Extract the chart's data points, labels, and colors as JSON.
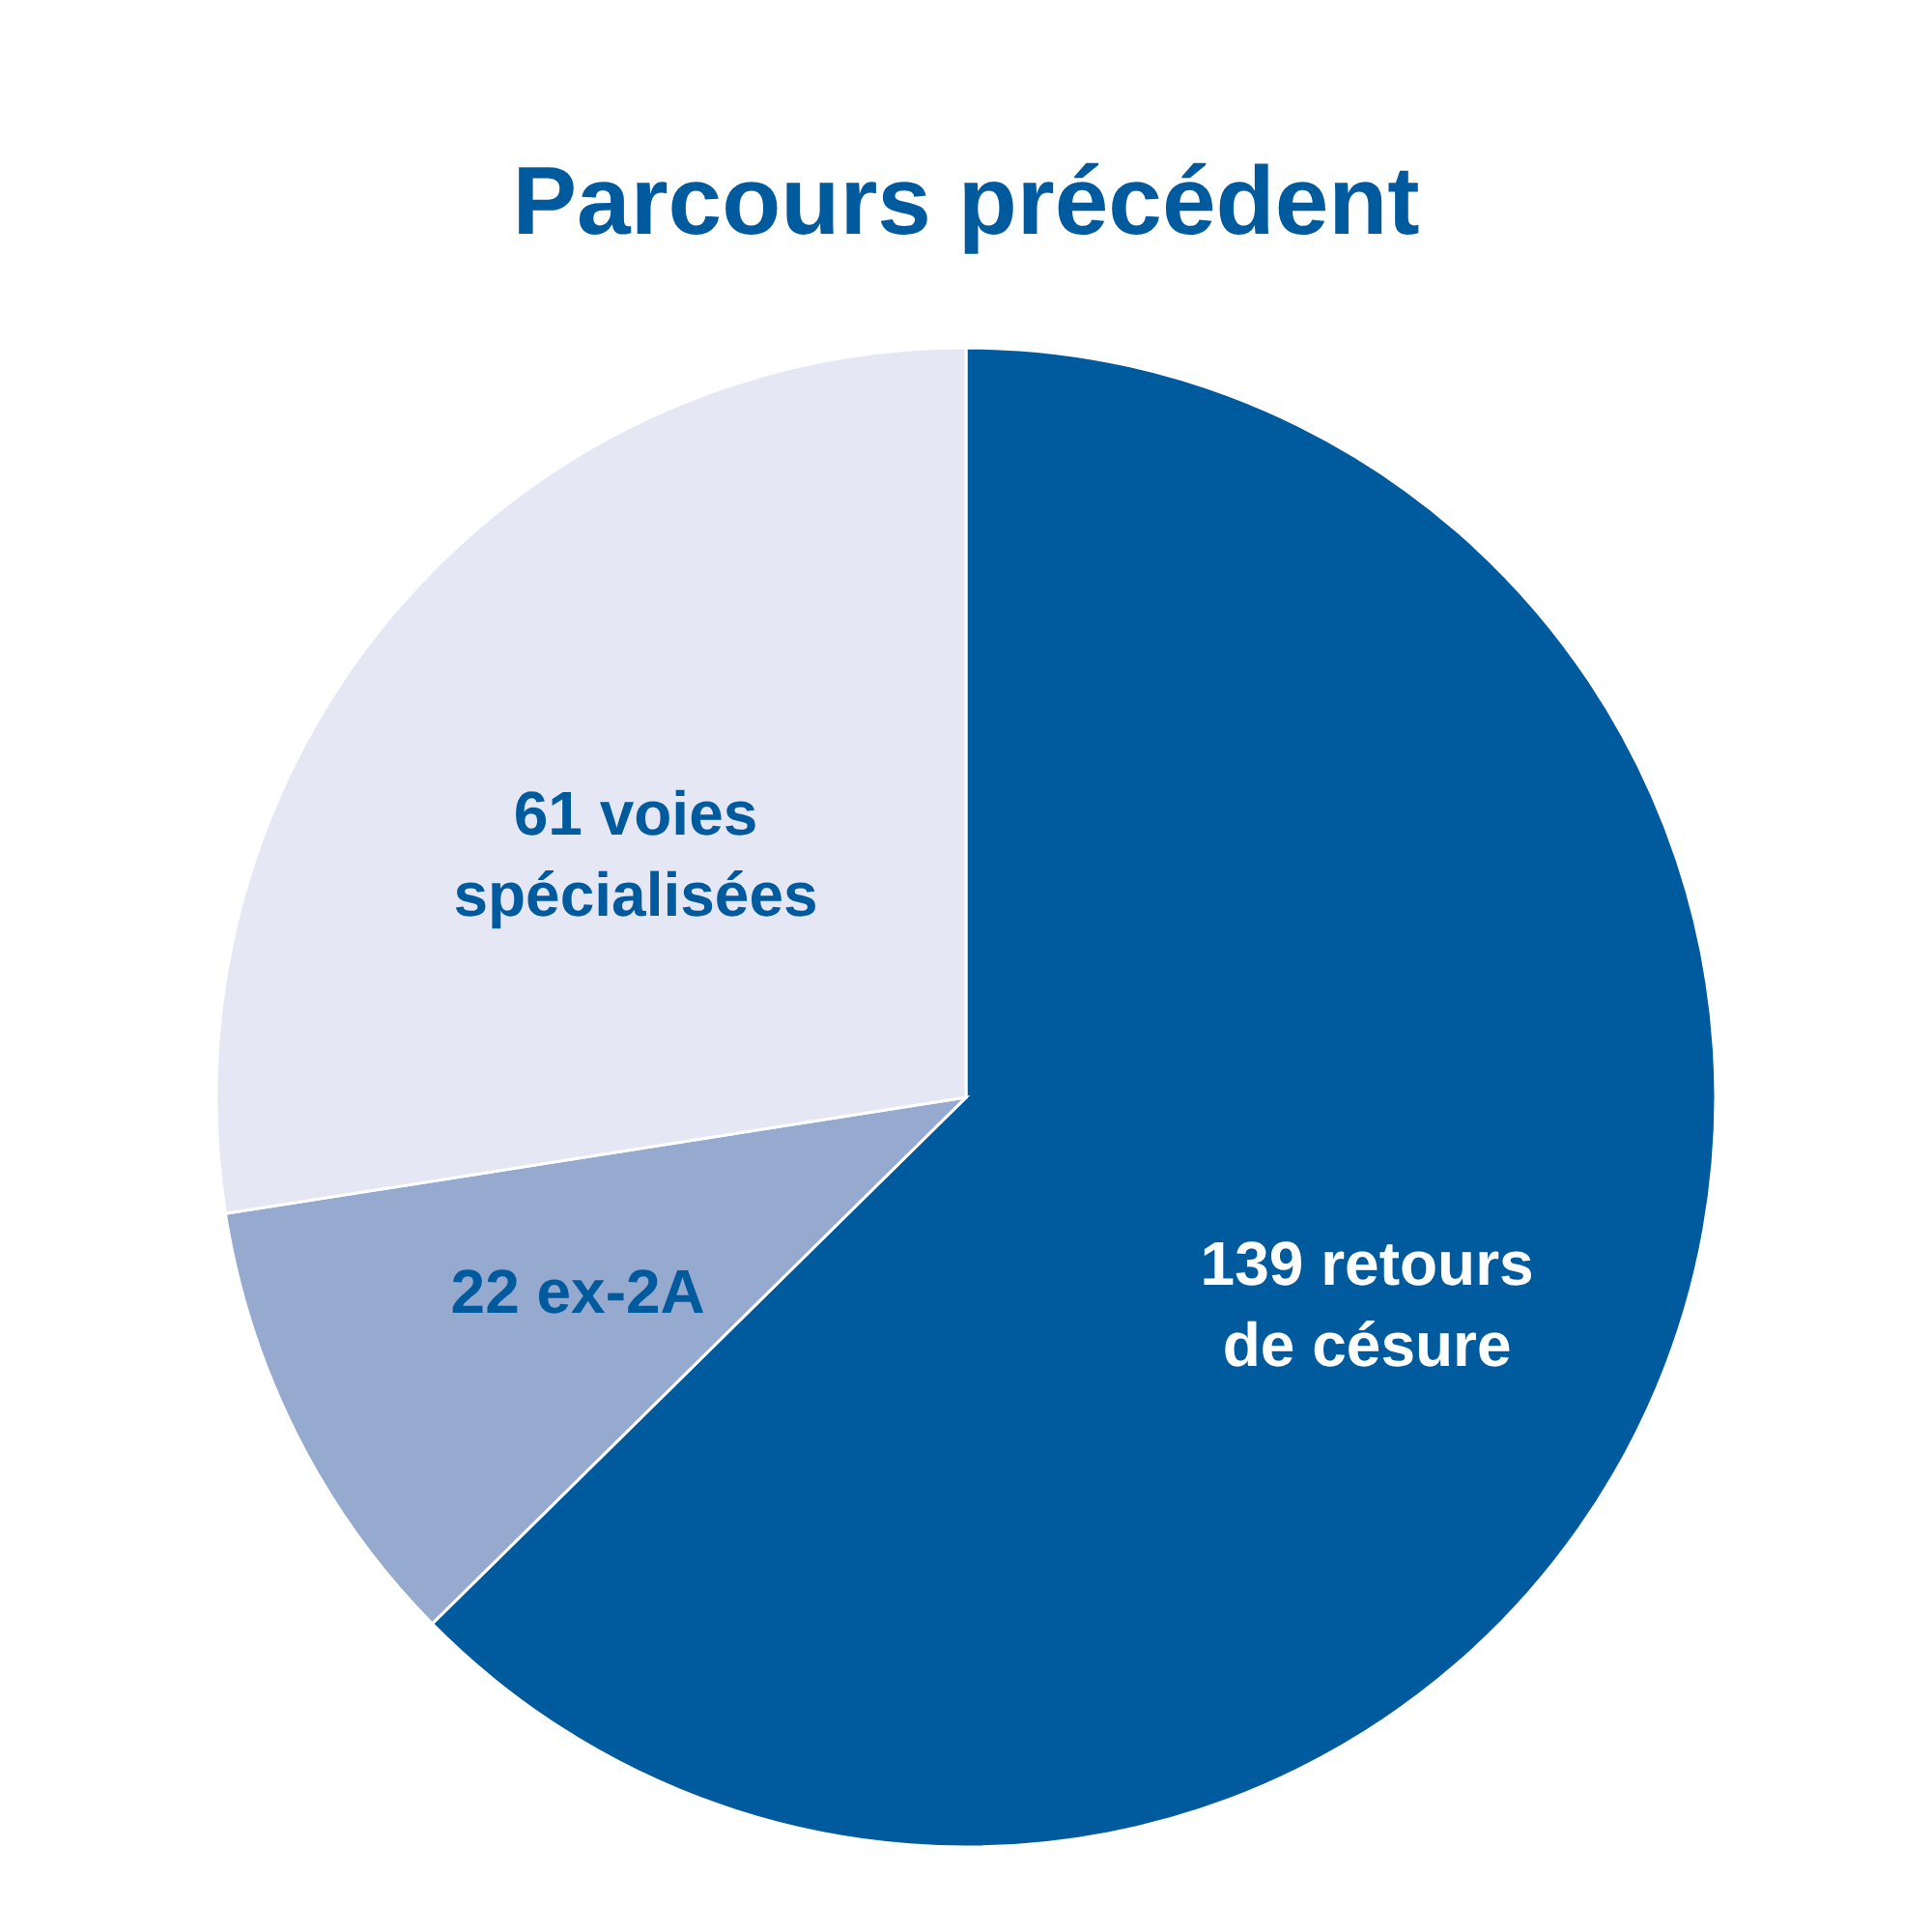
{
  "chart_data": {
    "type": "pie",
    "title": "Parcours précédent",
    "categories": [
      "139 retours de césure",
      "22 ex-2A",
      "61 voies spécialisées"
    ],
    "values": [
      139,
      22,
      61
    ],
    "colors": [
      "#005a9e",
      "#96a9cf",
      "#e5e7f4"
    ],
    "legend": false
  }
}
